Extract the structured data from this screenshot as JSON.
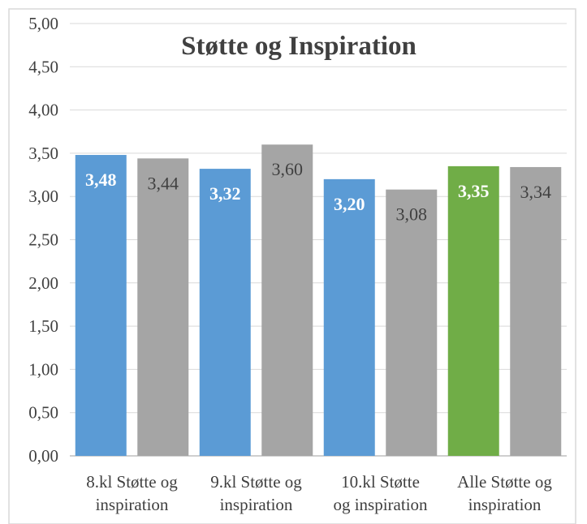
{
  "chart_data": {
    "type": "bar",
    "title": "Støtte og Inspiration",
    "xlabel": "",
    "ylabel": "",
    "ylim": [
      0,
      5
    ],
    "y_ticks": [
      "0,00",
      "0,50",
      "1,00",
      "1,50",
      "2,00",
      "2,50",
      "3,00",
      "3,50",
      "4,00",
      "4,50",
      "5,00"
    ],
    "grid": true,
    "legend": "none",
    "categories": [
      {
        "lines": [
          "8.kl Støtte og",
          "inspiration"
        ]
      },
      {
        "lines": [
          "9.kl Støtte og",
          "inspiration"
        ]
      },
      {
        "lines": [
          "10.kl Støtte",
          "og inspiration"
        ]
      },
      {
        "lines": [
          "Alle Støtte og",
          "inspiration"
        ]
      }
    ],
    "bars": [
      {
        "value": 3.48,
        "label": "3,48",
        "color": "#5b9bd5",
        "label_style": "inside"
      },
      {
        "value": 3.44,
        "label": "3,44",
        "color": "#a5a5a5",
        "label_style": "outside"
      },
      {
        "value": 3.32,
        "label": "3,32",
        "color": "#5b9bd5",
        "label_style": "inside"
      },
      {
        "value": 3.6,
        "label": "3,60",
        "color": "#a5a5a5",
        "label_style": "outside"
      },
      {
        "value": 3.2,
        "label": "3,20",
        "color": "#5b9bd5",
        "label_style": "inside"
      },
      {
        "value": 3.08,
        "label": "3,08",
        "color": "#a5a5a5",
        "label_style": "outside"
      },
      {
        "value": 3.35,
        "label": "3,35",
        "color": "#70ad47",
        "label_style": "inside"
      },
      {
        "value": 3.34,
        "label": "3,34",
        "color": "#a5a5a5",
        "label_style": "outside"
      }
    ]
  }
}
